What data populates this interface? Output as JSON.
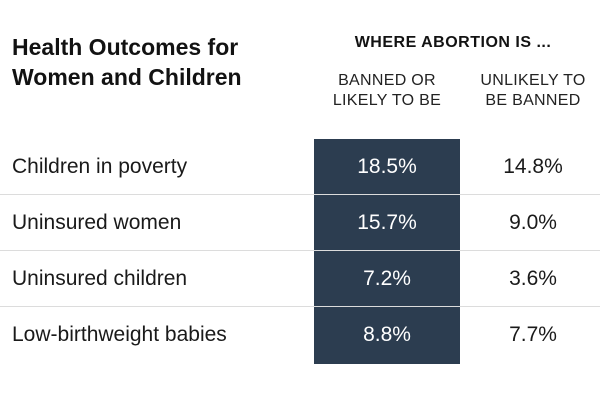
{
  "chart_data": {
    "type": "table",
    "title_line1": "Health Outcomes for",
    "title_line2": "Women and Children",
    "group_header": "WHERE ABORTION IS ...",
    "columns": [
      "BANNED OR\nLIKELY TO BE",
      "UNLIKELY TO\nBE BANNED"
    ],
    "rows": [
      {
        "label": "Children in poverty",
        "banned": "18.5%",
        "unlikely": "14.8%"
      },
      {
        "label": "Uninsured women",
        "banned": "15.7%",
        "unlikely": "9.0%"
      },
      {
        "label": "Uninsured children",
        "banned": "7.2%",
        "unlikely": "3.6%"
      },
      {
        "label": "Low-birthweight babies",
        "banned": "8.8%",
        "unlikely": "7.7%"
      }
    ],
    "highlight_color": "#2c3d50"
  }
}
